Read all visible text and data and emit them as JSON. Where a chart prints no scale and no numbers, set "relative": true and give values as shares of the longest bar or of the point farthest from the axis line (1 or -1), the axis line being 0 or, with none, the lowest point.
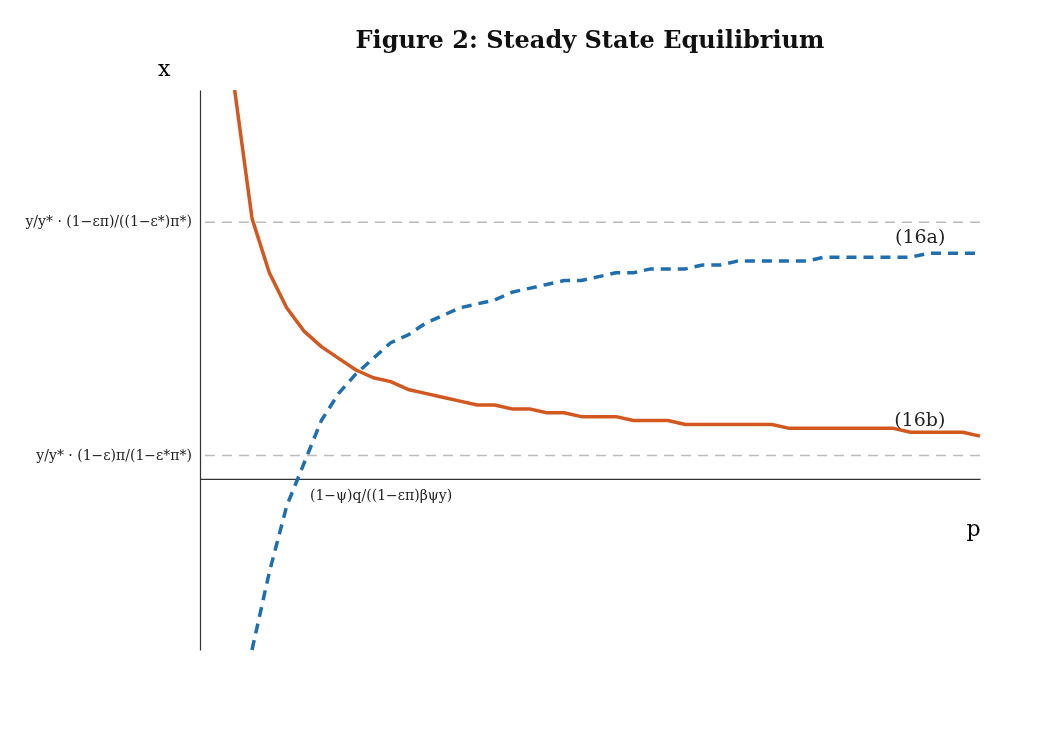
{
  "chart_data": {
    "type": "line",
    "relative": true,
    "title": "Figure 2: Steady State Equilibrium",
    "xlabel": "p",
    "ylabel": "x",
    "categories": [
      null,
      null,
      null,
      null,
      null,
      null,
      null,
      null,
      null,
      null,
      null,
      null,
      null,
      null,
      null,
      null,
      null,
      null,
      null,
      null,
      null,
      null,
      null,
      null,
      null,
      null,
      null,
      null,
      null,
      null,
      null,
      null,
      null,
      null,
      null,
      null,
      null,
      null,
      null,
      null,
      null,
      null,
      null,
      null,
      null,
      null
    ],
    "series": [
      {
        "name": "(16a)",
        "color": "#1f6fb0",
        "line_style": "dashed",
        "values": [
          null,
          null,
          null,
          -0.44,
          -0.24,
          -0.07,
          0.04,
          0.15,
          0.22,
          0.27,
          0.31,
          0.35,
          0.37,
          0.4,
          0.42,
          0.44,
          0.45,
          0.46,
          0.48,
          0.49,
          0.5,
          0.51,
          0.51,
          0.52,
          0.53,
          0.53,
          0.54,
          0.54,
          0.54,
          0.55,
          0.55,
          0.56,
          0.56,
          0.56,
          0.56,
          0.56,
          0.57,
          0.57,
          0.57,
          0.57,
          0.57,
          0.57,
          0.58,
          0.58,
          0.58,
          0.58
        ]
      },
      {
        "name": "(16b)",
        "color": "#d2581f",
        "line_style": "solid",
        "values": [
          null,
          null,
          1,
          0.67,
          0.53,
          0.44,
          0.38,
          0.34,
          0.31,
          0.28,
          0.26,
          0.25,
          0.23,
          0.22,
          0.21,
          0.2,
          0.19,
          0.19,
          0.18,
          0.18,
          0.17,
          0.17,
          0.16,
          0.16,
          0.16,
          0.15,
          0.15,
          0.15,
          0.14,
          0.14,
          0.14,
          0.14,
          0.14,
          0.14,
          0.13,
          0.13,
          0.13,
          0.13,
          0.13,
          0.13,
          0.13,
          0.12,
          0.12,
          0.12,
          0.12,
          0.11
        ]
      }
    ],
    "ref_lines": [
      {
        "axis": "y",
        "value": 0.66,
        "label": "y/y* · (1−επ)/((1−ε*)π*)",
        "color": "#bbbbbb",
        "line_style": "dashed"
      },
      {
        "axis": "y",
        "value": 0.06,
        "label": "y/y* · (1−ε)π/(1−ε*π*)",
        "color": "#bbbbbb",
        "line_style": "dashed"
      }
    ],
    "annotations": [
      "(1−ψ)q/((1−επ)βψy)"
    ]
  }
}
